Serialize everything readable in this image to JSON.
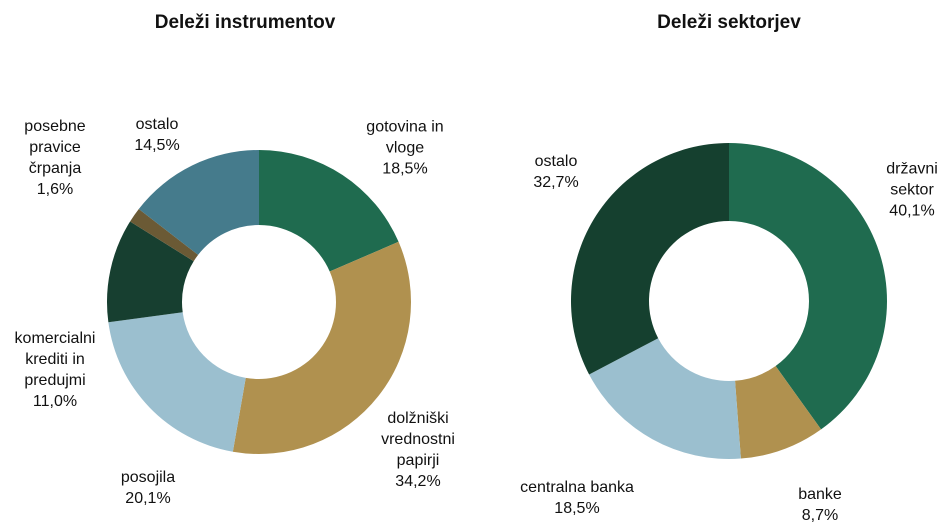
{
  "chart_data": [
    {
      "type": "donut",
      "title": "Deleži instrumentov",
      "categories": [
        "gotovina in\nvloge",
        "dolžniški\nvrednostni\npapirji",
        "posojila",
        "komercialni\nkrediti in\npredujmi",
        "posebne\npravice\nčrpanja",
        "ostalo"
      ],
      "values": [
        18.5,
        34.2,
        20.1,
        11.0,
        1.6,
        14.5
      ],
      "value_labels": [
        "18,5%",
        "34,2%",
        "20,1%",
        "11,0%",
        "1,6%",
        "14,5%"
      ],
      "colors": [
        "#1f6b4f",
        "#b0914f",
        "#9bbfcf",
        "#173f30",
        "#6b5a35",
        "#457b8c"
      ]
    },
    {
      "type": "donut",
      "title": "Deleži sektorjev",
      "categories": [
        "državni\nsektor",
        "banke",
        "centralna banka",
        "ostalo"
      ],
      "values": [
        40.1,
        8.7,
        18.5,
        32.7
      ],
      "value_labels": [
        "40,1%",
        "8,7%",
        "18,5%",
        "32,7%"
      ],
      "colors": [
        "#1f6b4f",
        "#b0914f",
        "#9bbfcf",
        "#15402f"
      ]
    }
  ]
}
